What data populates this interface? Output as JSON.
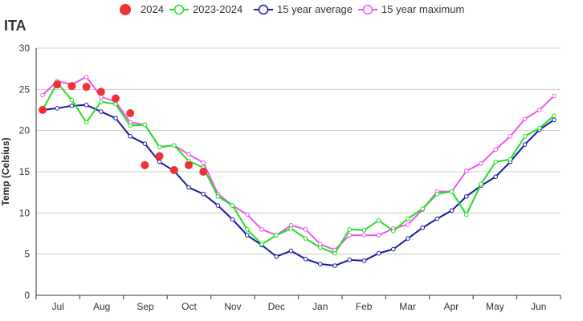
{
  "chart_data": {
    "type": "line",
    "title": "ITA",
    "ylabel": "Temp (Celsius)",
    "xlabel": "",
    "ylim": [
      0,
      30
    ],
    "yticks": [
      0,
      5,
      10,
      15,
      20,
      25,
      30
    ],
    "x_month_labels": [
      "Jul",
      "Aug",
      "Sep",
      "Oct",
      "Nov",
      "Dec",
      "Jan",
      "Feb",
      "Mar",
      "Apr",
      "May",
      "Jun"
    ],
    "grid": "horizontal",
    "legend_position": "top",
    "series": [
      {
        "name": "2024",
        "style": "markers",
        "color": "#ee3333",
        "values": [
          22.5,
          25.6,
          25.4,
          25.3,
          24.7,
          23.9,
          22.1,
          15.8,
          16.9,
          15.2,
          15.8,
          15.0
        ]
      },
      {
        "name": "2023-2024",
        "style": "line-open-markers",
        "color": "#22dd22",
        "values": [
          22.5,
          25.8,
          23.7,
          21.0,
          23.5,
          23.2,
          20.6,
          20.7,
          18.0,
          18.2,
          16.3,
          15.5,
          12.0,
          10.9,
          8.0,
          6.2,
          7.3,
          8.1,
          6.9,
          5.8,
          5.1,
          8.0,
          7.9,
          9.1,
          7.8,
          9.3,
          10.5,
          12.3,
          12.6,
          9.8,
          13.5,
          16.2,
          16.5,
          19.3,
          20.3,
          21.8
        ]
      },
      {
        "name": "15 year average",
        "style": "line-open-markers",
        "color": "#1a1aa0",
        "values": [
          22.5,
          22.7,
          23.0,
          23.1,
          22.3,
          21.5,
          19.3,
          18.4,
          16.2,
          15.1,
          13.1,
          12.3,
          10.9,
          9.2,
          7.3,
          6.1,
          4.7,
          5.4,
          4.4,
          3.8,
          3.6,
          4.3,
          4.2,
          5.1,
          5.6,
          6.9,
          8.2,
          9.3,
          10.3,
          12.0,
          13.3,
          14.4,
          16.2,
          18.3,
          20.1,
          21.3
        ]
      },
      {
        "name": "15 year maximum",
        "style": "line-open-markers",
        "color": "#ee55ee",
        "values": [
          24.3,
          26.0,
          25.6,
          26.5,
          24.1,
          23.5,
          21.0,
          20.7,
          18.0,
          18.2,
          17.1,
          16.1,
          12.3,
          10.9,
          9.8,
          8.0,
          7.3,
          8.5,
          8.0,
          6.2,
          5.5,
          7.3,
          7.3,
          7.3,
          8.1,
          8.6,
          10.4,
          12.6,
          12.6,
          15.1,
          16.0,
          17.7,
          19.3,
          21.4,
          22.5,
          24.2
        ]
      }
    ]
  }
}
